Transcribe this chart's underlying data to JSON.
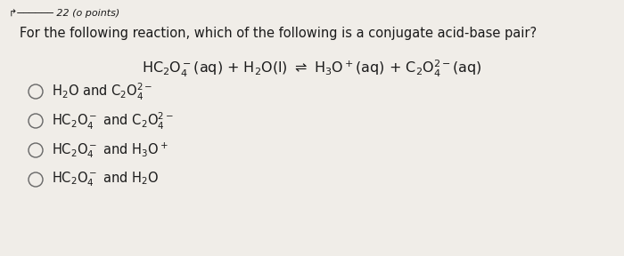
{
  "background_color": "#f0ede8",
  "question_text": "For the following reaction, which of the following is a conjugate acid-base pair?",
  "text_color": "#1a1a1a",
  "header_text": "┤─────── 22 (o points)",
  "question_fontsize": 10.5,
  "reaction_fontsize": 11.5,
  "option_fontsize": 10.5,
  "circle_color": "#666666",
  "circle_linewidth": 1.0
}
